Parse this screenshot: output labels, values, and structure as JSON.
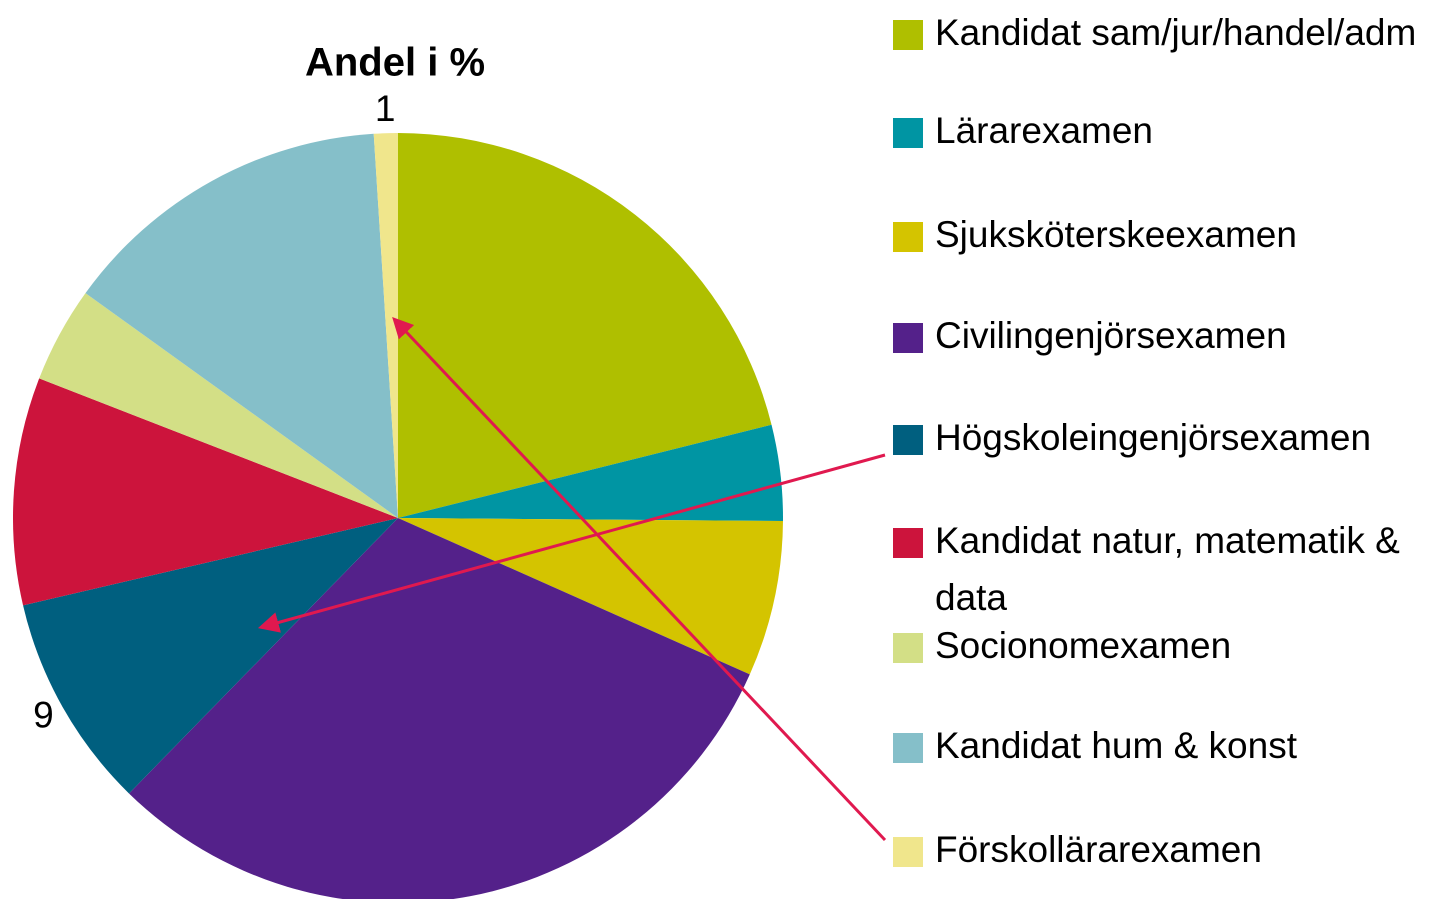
{
  "chart_data": {
    "type": "pie",
    "title": "Andel i %",
    "categories": [
      "Kandidat sam/jur/handel/adm",
      "Lärarexamen",
      "Sjuksköterskeexamen",
      "Civilingenjörsexamen",
      "Högskoleingenjörsexamen",
      "Kandidat natur, matematik & data",
      "Socionomexamen",
      "Kandidat hum & konst",
      "Förskollärarexamen"
    ],
    "values": [
      21,
      4,
      6.5,
      30.5,
      9,
      9.5,
      4,
      14,
      1
    ],
    "value_labels": [
      null,
      null,
      null,
      null,
      "9",
      null,
      null,
      null,
      "1"
    ],
    "colors": [
      "#afbf00",
      "#0095a3",
      "#d4c400",
      "#54218a",
      "#005f7f",
      "#cc143c",
      "#d3df86",
      "#85bfc9",
      "#f0e68c"
    ],
    "legend": "right"
  }
}
